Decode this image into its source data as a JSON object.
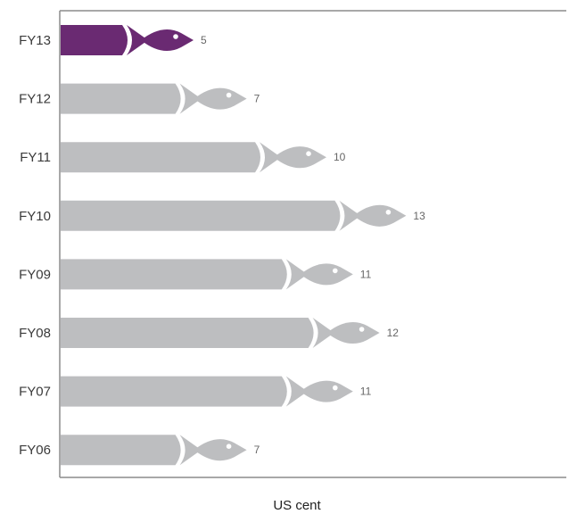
{
  "chart_data": {
    "type": "bar",
    "orientation": "horizontal",
    "categories": [
      "FY13",
      "FY12",
      "FY11",
      "FY10",
      "FY09",
      "FY08",
      "FY07",
      "FY06"
    ],
    "values": [
      5,
      7,
      10,
      13,
      11,
      12,
      11,
      7
    ],
    "value_labels": [
      "5",
      "7",
      "10",
      "13",
      "11",
      "12",
      "11",
      "7"
    ],
    "title": "",
    "xlabel": "US  cent",
    "ylabel": "",
    "highlight_category": "FY13",
    "colors": {
      "highlight": "#6a2a72",
      "default": "#bdbec0",
      "axis": "#8c8c8c",
      "eye": "#ffffff"
    },
    "bar_end_icon": "fish-icon",
    "grid": false
  }
}
